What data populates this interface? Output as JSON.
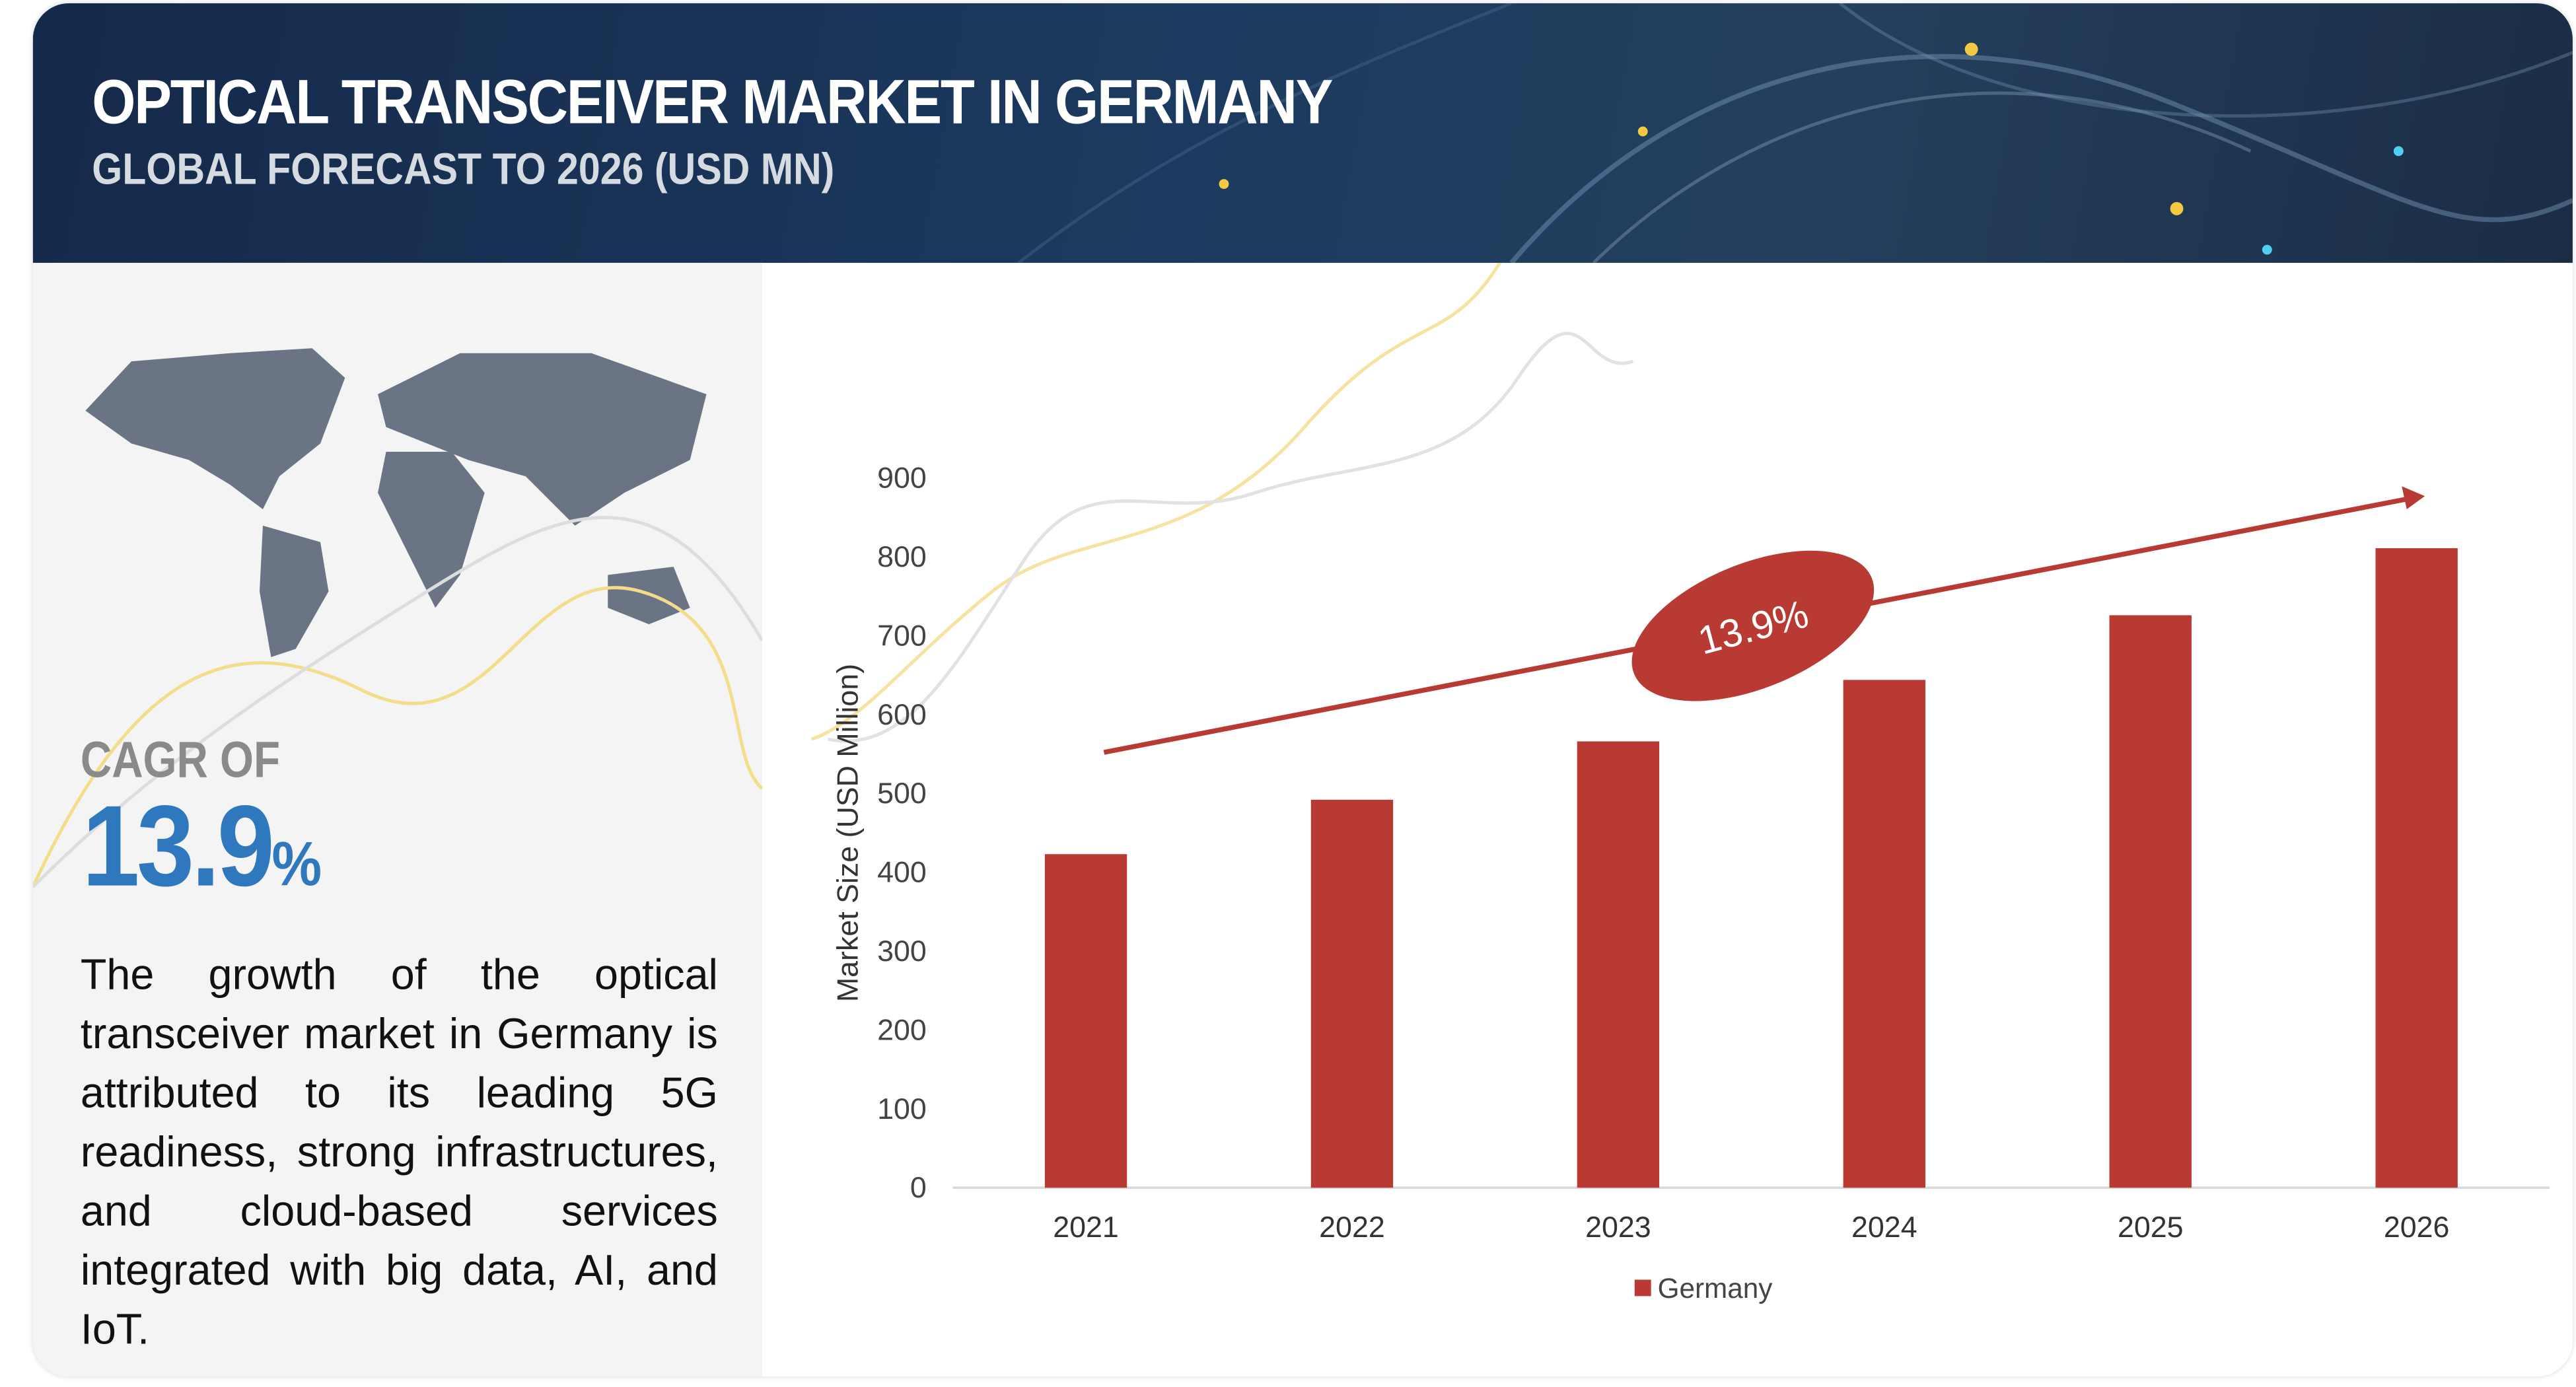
{
  "header": {
    "title": "OPTICAL TRANSCEIVER MARKET IN GERMANY",
    "subtitle": "GLOBAL FORECAST TO 2026 (USD MN)"
  },
  "sidebar": {
    "cagr_label": "CAGR OF",
    "cagr_value": "13.9",
    "cagr_unit": "%",
    "description": "The growth of the optical transceiver market in Germany is attributed to its leading 5G readiness, strong infrastructures, and cloud-based services integrated with big data, AI, and IoT."
  },
  "colors": {
    "bar": "#b83a32",
    "accent": "#2f78bd",
    "banner": "#1c3a5f"
  },
  "chart_data": {
    "type": "bar",
    "title": "",
    "xlabel": "",
    "ylabel": "Market Size (USD Million)",
    "categories": [
      "2021",
      "2022",
      "2023",
      "2024",
      "2025",
      "2026"
    ],
    "series": [
      {
        "name": "Germany",
        "values": [
          423,
          492,
          566,
          644,
          726,
          811
        ]
      }
    ],
    "ylim": [
      0,
      900
    ],
    "yticks": [
      "0",
      "100",
      "200",
      "300",
      "400",
      "500",
      "600",
      "700",
      "800",
      "900"
    ],
    "grid": false,
    "legend": "bottom",
    "annotation": "13.9%"
  }
}
